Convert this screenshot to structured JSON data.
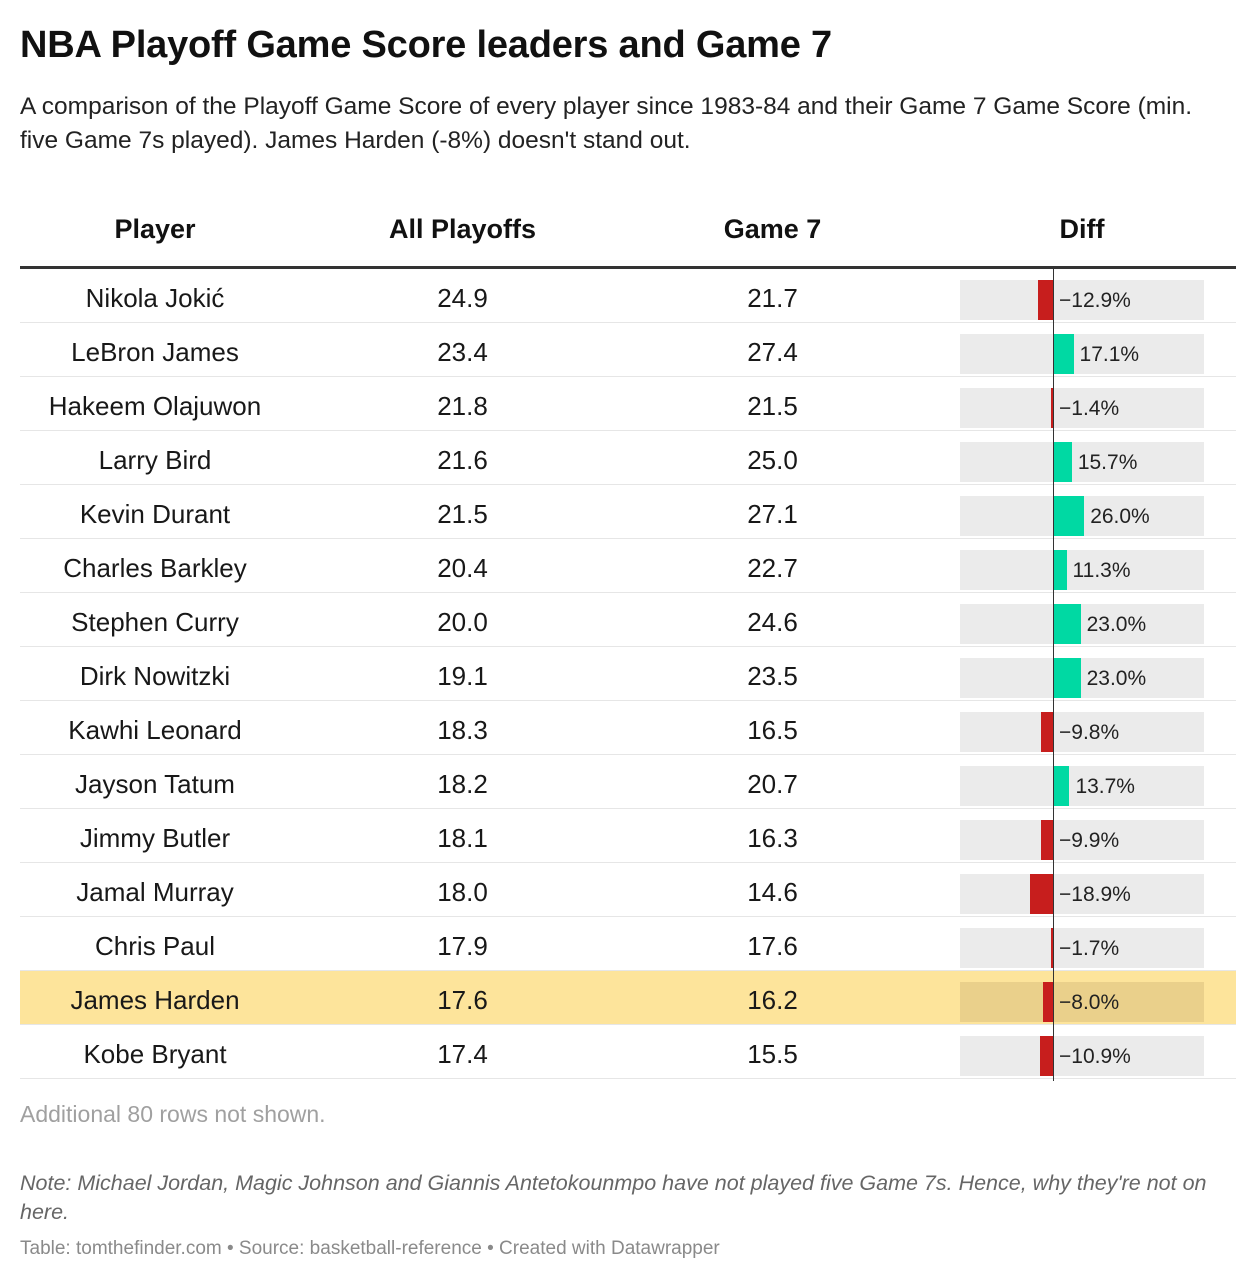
{
  "title": "NBA Playoff Game Score leaders and Game 7",
  "subtitle": "A comparison of the Playoff Game Score of every player since 1983-84 and their Game 7 Game Score (min. five Game 7s played). James Harden (-8%) doesn't stand out.",
  "colors": {
    "positive": "#00d9a3",
    "negative": "#c71e1d",
    "highlight": "#fde49b",
    "bar_bg": "#ebebeb"
  },
  "chart_data": {
    "type": "table",
    "columns": [
      "Player",
      "All Playoffs",
      "Game 7",
      "Diff"
    ],
    "highlight": "James Harden",
    "rows": [
      {
        "player": "Nikola Jokić",
        "all": "24.9",
        "g7": "21.7",
        "diff": -12.9,
        "diff_label": "−12.9%"
      },
      {
        "player": "LeBron James",
        "all": "23.4",
        "g7": "27.4",
        "diff": 17.1,
        "diff_label": "17.1%"
      },
      {
        "player": "Hakeem Olajuwon",
        "all": "21.8",
        "g7": "21.5",
        "diff": -1.4,
        "diff_label": "−1.4%"
      },
      {
        "player": "Larry Bird",
        "all": "21.6",
        "g7": "25.0",
        "diff": 15.7,
        "diff_label": "15.7%"
      },
      {
        "player": "Kevin Durant",
        "all": "21.5",
        "g7": "27.1",
        "diff": 26.0,
        "diff_label": "26.0%"
      },
      {
        "player": "Charles Barkley",
        "all": "20.4",
        "g7": "22.7",
        "diff": 11.3,
        "diff_label": "11.3%"
      },
      {
        "player": "Stephen Curry",
        "all": "20.0",
        "g7": "24.6",
        "diff": 23.0,
        "diff_label": "23.0%"
      },
      {
        "player": "Dirk Nowitzki",
        "all": "19.1",
        "g7": "23.5",
        "diff": 23.0,
        "diff_label": "23.0%"
      },
      {
        "player": "Kawhi Leonard",
        "all": "18.3",
        "g7": "16.5",
        "diff": -9.8,
        "diff_label": "−9.8%"
      },
      {
        "player": "Jayson Tatum",
        "all": "18.2",
        "g7": "20.7",
        "diff": 13.7,
        "diff_label": "13.7%"
      },
      {
        "player": "Jimmy Butler",
        "all": "18.1",
        "g7": "16.3",
        "diff": -9.9,
        "diff_label": "−9.9%"
      },
      {
        "player": "Jamal Murray",
        "all": "18.0",
        "g7": "14.6",
        "diff": -18.9,
        "diff_label": "−18.9%"
      },
      {
        "player": "Chris Paul",
        "all": "17.9",
        "g7": "17.6",
        "diff": -1.7,
        "diff_label": "−1.7%"
      },
      {
        "player": "James Harden",
        "all": "17.6",
        "g7": "16.2",
        "diff": -8.0,
        "diff_label": "−8.0%"
      },
      {
        "player": "Kobe Bryant",
        "all": "17.4",
        "g7": "15.5",
        "diff": -10.9,
        "diff_label": "−10.9%"
      }
    ]
  },
  "rows_note": "Additional 80 rows not shown.",
  "note": "Note: Michael Jordan, Magic Johnson and Giannis Antetokounmpo have not played five Game 7s. Hence, why they're not on here.",
  "credits": "Table: tomthefinder.com • Source: basketball-reference • Created with Datawrapper"
}
